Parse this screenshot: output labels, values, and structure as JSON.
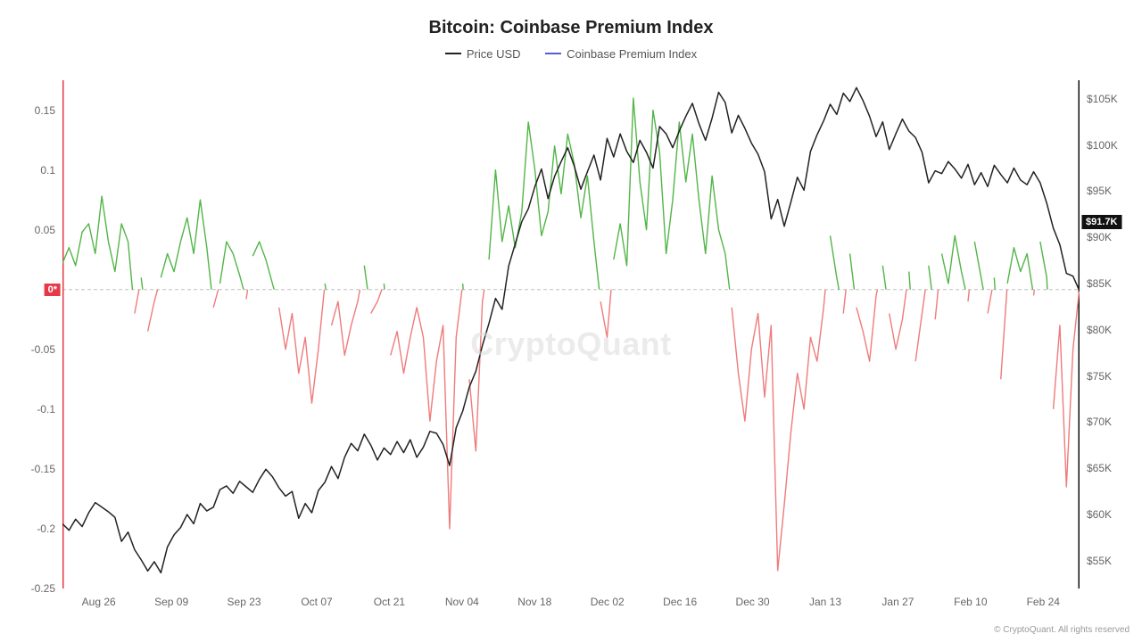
{
  "title": "Bitcoin: Coinbase Premium Index",
  "legend": {
    "series1": {
      "label": "Price USD",
      "color": "#222222"
    },
    "series2": {
      "label": "Coinbase Premium Index",
      "color": "#5b5bd6"
    }
  },
  "watermark": "CryptoQuant",
  "copyright": "© CryptoQuant. All rights reserved",
  "chart": {
    "type": "line-dual-axis",
    "background_color": "#ffffff",
    "grid_color": "#cccccc",
    "zero_line_color": "#bfbfbf",
    "zero_line_dash": "4,3",
    "left_axis": {
      "min": -0.25,
      "max": 0.175,
      "ticks": [
        -0.25,
        -0.2,
        -0.15,
        -0.1,
        -0.05,
        0,
        0.05,
        0.1,
        0.15
      ],
      "zero_badge": "0*",
      "zero_badge_bg": "#e63946",
      "label_color": "#666666",
      "label_fontsize": 12,
      "axis_line_color": "#e63946",
      "axis_line_width": 2
    },
    "right_axis": {
      "min": 52000,
      "max": 107000,
      "ticks": [
        {
          "v": 55000,
          "label": "$55K"
        },
        {
          "v": 60000,
          "label": "$60K"
        },
        {
          "v": 65000,
          "label": "$65K"
        },
        {
          "v": 70000,
          "label": "$70K"
        },
        {
          "v": 75000,
          "label": "$75K"
        },
        {
          "v": 80000,
          "label": "$80K"
        },
        {
          "v": 85000,
          "label": "$85K"
        },
        {
          "v": 90000,
          "label": "$90K"
        },
        {
          "v": 95000,
          "label": "$95K"
        },
        {
          "v": 100000,
          "label": "$100K"
        },
        {
          "v": 105000,
          "label": "$105K"
        }
      ],
      "label_color": "#666666",
      "label_fontsize": 12,
      "axis_line_color": "#111111",
      "axis_line_width": 2,
      "price_badge": "$91.7K",
      "price_badge_value": 91700,
      "price_badge_bg": "#111111"
    },
    "x_axis": {
      "labels": [
        "Aug 26",
        "Sep 09",
        "Sep 23",
        "Oct 07",
        "Oct 21",
        "Nov 04",
        "Nov 18",
        "Dec 02",
        "Dec 16",
        "Dec 30",
        "Jan 13",
        "Jan 27",
        "Feb 10",
        "Feb 24"
      ],
      "label_color": "#666666",
      "label_fontsize": 12
    },
    "premium_positive_color": "#52b548",
    "premium_negative_color": "#ef7b7b",
    "premium_line_width": 1.4,
    "price_color": "#222222",
    "price_line_width": 1.5,
    "premium_values": [
      0.022,
      0.035,
      0.02,
      0.048,
      0.055,
      0.03,
      0.078,
      0.04,
      0.015,
      0.055,
      0.04,
      -0.02,
      0.01,
      -0.035,
      -0.01,
      0.01,
      0.03,
      0.015,
      0.04,
      0.06,
      0.03,
      0.075,
      0.035,
      -0.015,
      0.005,
      0.04,
      0.03,
      0.012,
      -0.008,
      0.028,
      0.04,
      0.025,
      0.005,
      -0.015,
      -0.05,
      -0.02,
      -0.07,
      -0.04,
      -0.095,
      -0.05,
      0.005,
      -0.03,
      -0.01,
      -0.055,
      -0.03,
      -0.01,
      0.02,
      -0.02,
      -0.01,
      0.005,
      -0.055,
      -0.035,
      -0.07,
      -0.04,
      -0.015,
      -0.04,
      -0.11,
      -0.06,
      -0.03,
      -0.2,
      -0.04,
      0.005,
      -0.075,
      -0.135,
      -0.01,
      0.025,
      0.1,
      0.04,
      0.07,
      0.035,
      0.065,
      0.14,
      0.1,
      0.045,
      0.065,
      0.12,
      0.08,
      0.13,
      0.105,
      0.06,
      0.095,
      0.04,
      -0.01,
      -0.04,
      0.025,
      0.055,
      0.02,
      0.16,
      0.09,
      0.05,
      0.15,
      0.115,
      0.03,
      0.075,
      0.14,
      0.09,
      0.13,
      0.075,
      0.03,
      0.095,
      0.05,
      0.03,
      -0.015,
      -0.07,
      -0.11,
      -0.05,
      -0.02,
      -0.09,
      -0.03,
      -0.235,
      -0.18,
      -0.12,
      -0.07,
      -0.1,
      -0.04,
      -0.06,
      -0.015,
      0.045,
      0.01,
      -0.02,
      0.03,
      -0.015,
      -0.035,
      -0.06,
      -0.005,
      0.02,
      -0.02,
      -0.05,
      -0.025,
      0.015,
      -0.06,
      -0.02,
      0.02,
      -0.025,
      0.03,
      0.005,
      0.045,
      0.015,
      -0.01,
      0.04,
      0.01,
      -0.02,
      0.01,
      -0.075,
      0.005,
      0.035,
      0.015,
      0.03,
      -0.005,
      0.04,
      0.01,
      -0.1,
      -0.03,
      -0.165,
      -0.05,
      0.002
    ],
    "price_values": [
      59000,
      58300,
      59500,
      58700,
      60200,
      61300,
      60800,
      60300,
      59700,
      57100,
      58100,
      56200,
      55100,
      53900,
      54900,
      53700,
      56500,
      57800,
      58600,
      60000,
      59000,
      61200,
      60400,
      60800,
      62700,
      63100,
      62300,
      63600,
      63000,
      62400,
      63800,
      64900,
      64100,
      62900,
      62000,
      62500,
      59600,
      61200,
      60200,
      62600,
      63500,
      65200,
      63900,
      66200,
      67700,
      66900,
      68700,
      67500,
      65900,
      67200,
      66500,
      67900,
      66700,
      68100,
      66200,
      67300,
      69000,
      68800,
      67600,
      65300,
      69400,
      71200,
      73800,
      75500,
      78300,
      80700,
      83400,
      82200,
      86900,
      89300,
      91700,
      93100,
      95500,
      97400,
      94200,
      96600,
      98200,
      99700,
      97700,
      95200,
      97100,
      98900,
      96200,
      100700,
      98700,
      101200,
      99300,
      98100,
      100500,
      99200,
      97500,
      102000,
      101200,
      99700,
      101500,
      103100,
      104500,
      102300,
      100500,
      102900,
      105700,
      104600,
      101300,
      103200,
      101800,
      100200,
      99000,
      97100,
      92000,
      94100,
      91200,
      93800,
      96500,
      95100,
      99300,
      101100,
      102600,
      104400,
      103300,
      105600,
      104700,
      106200,
      104800,
      103100,
      100900,
      102500,
      99500,
      101200,
      102800,
      101500,
      100800,
      99200,
      95900,
      97200,
      96900,
      98200,
      97400,
      96400,
      97900,
      95700,
      97000,
      95500,
      97800,
      96800,
      95900,
      97500,
      96200,
      95700,
      97100,
      95900,
      93700,
      91000,
      89200,
      86100,
      85800,
      84200,
      86000,
      88500,
      90900,
      91700
    ]
  }
}
